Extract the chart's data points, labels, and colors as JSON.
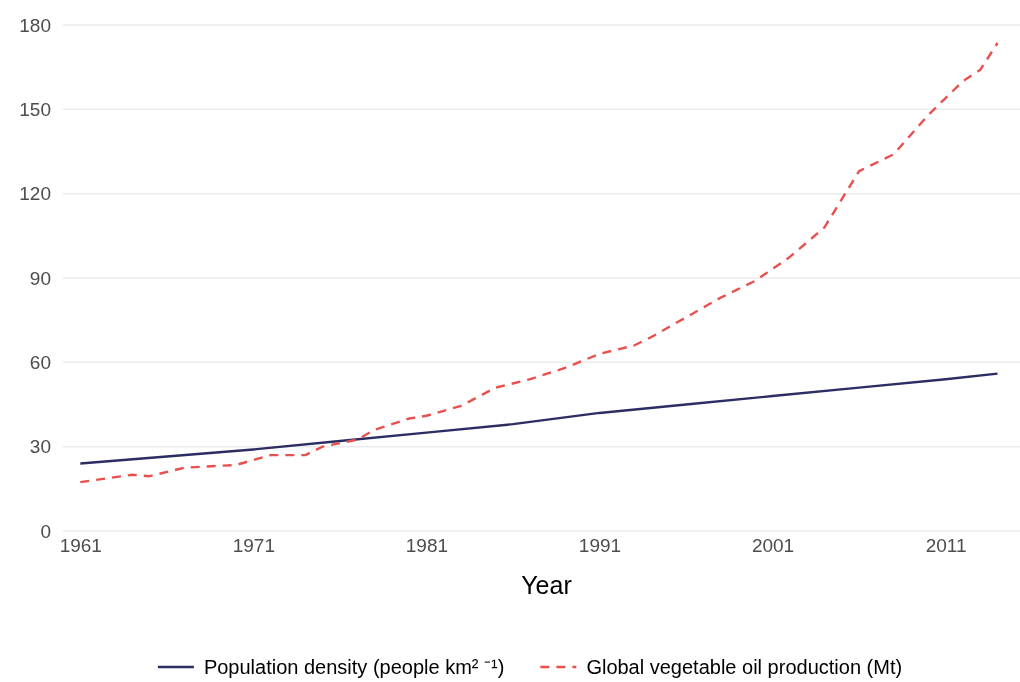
{
  "chart_data": {
    "type": "line",
    "xlabel": "Year",
    "x": [
      1961,
      1964,
      1965,
      1967,
      1970,
      1972,
      1974,
      1975,
      1977,
      1978,
      1980,
      1981,
      1983,
      1985,
      1987,
      1989,
      1991,
      1993,
      1994,
      1996,
      1998,
      2000,
      2002,
      2004,
      2006,
      2008,
      2010,
      2012,
      2013,
      2014
    ],
    "series": [
      {
        "name": "Population density (people km² ⁻¹)",
        "color": "#2b2d63",
        "line_style": "solid",
        "x": [
          1961,
          1966,
          1971,
          1976,
          1981,
          1986,
          1991,
          1996,
          2001,
          2006,
          2011,
          2014
        ],
        "values": [
          24,
          26.5,
          29,
          32,
          35,
          38,
          42,
          45,
          48,
          51,
          54,
          56
        ]
      },
      {
        "name": "Global vegetable oil production (Mt)",
        "color": "#e8504d",
        "line_style": "dashed",
        "values": [
          17.4,
          20,
          19.5,
          22.5,
          23.5,
          27,
          27,
          30,
          32.5,
          36,
          40,
          41,
          44.5,
          51,
          54,
          58,
          63,
          66,
          69,
          76,
          83,
          89,
          97.5,
          108,
          128,
          134,
          148,
          160,
          164,
          173.6
        ]
      }
    ],
    "xlim": [
      1960,
      2015.3
    ],
    "ylim": [
      0,
      180
    ],
    "xticks": [
      1961,
      1971,
      1981,
      1991,
      2001,
      2011
    ],
    "yticks": [
      0,
      30,
      60,
      90,
      120,
      150,
      180
    ],
    "grid": "y",
    "legend": "bottom"
  }
}
